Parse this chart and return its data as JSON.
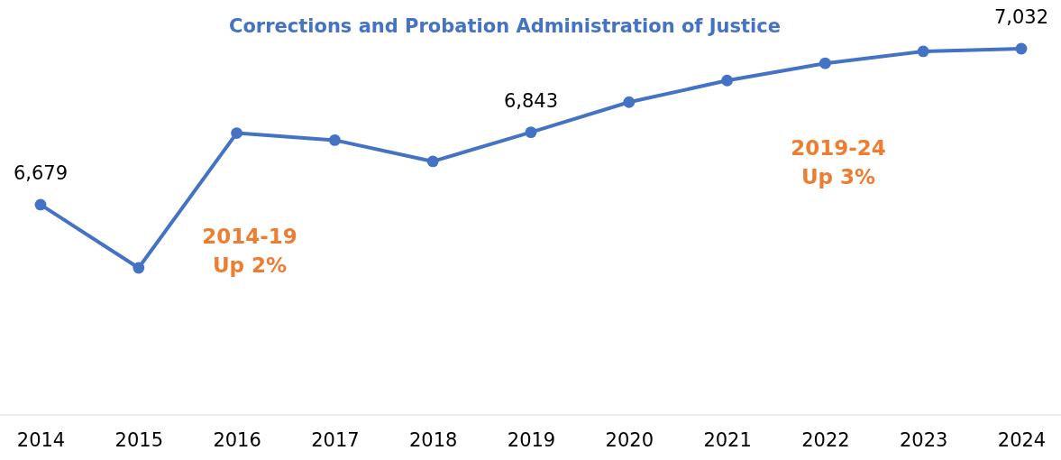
{
  "chart_data": {
    "type": "line",
    "title": "Corrections and Probation Administration of Justice",
    "categories": [
      "2014",
      "2015",
      "2016",
      "2017",
      "2018",
      "2019",
      "2020",
      "2021",
      "2022",
      "2023",
      "2024"
    ],
    "series": [
      {
        "color": "#4472c4",
        "values": [
          6679,
          6536,
          6841,
          6825,
          6777,
          6843,
          6911,
          6960,
          6999,
          7026,
          7032
        ],
        "value_labels": [
          "6,679",
          null,
          null,
          null,
          null,
          "6,843",
          null,
          null,
          null,
          null,
          "7,032"
        ]
      }
    ],
    "marker": "circle",
    "tick_labels": "x",
    "annotations": [
      "2014-19\nUp 2%",
      "2019-24\nUp 3%"
    ]
  }
}
